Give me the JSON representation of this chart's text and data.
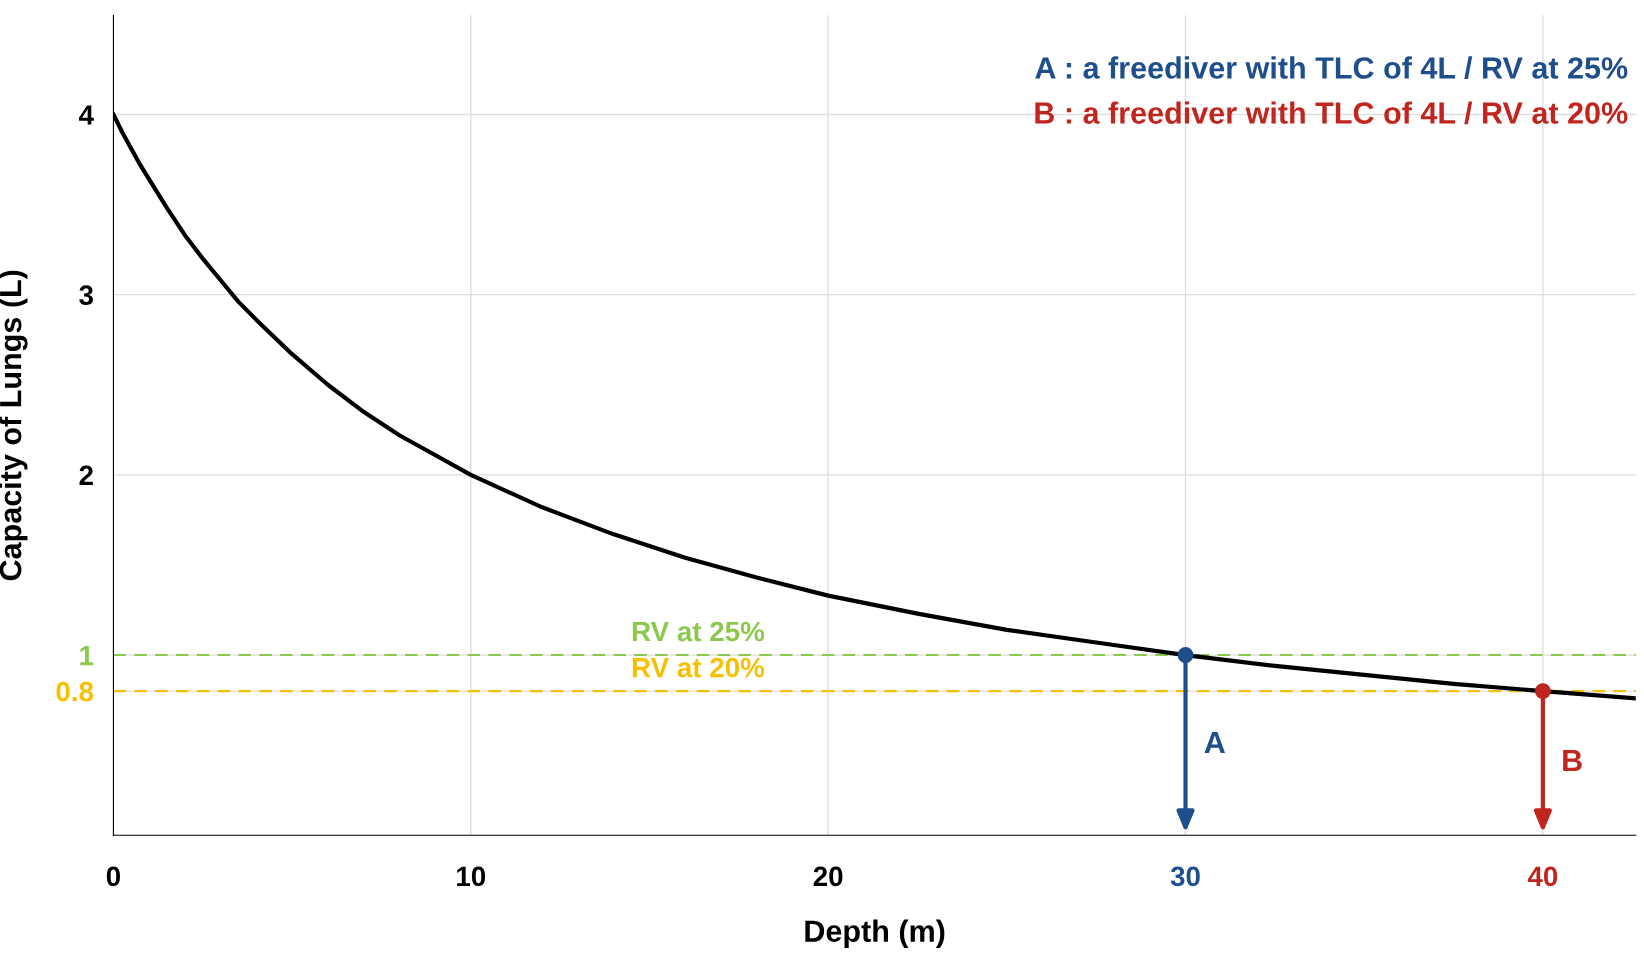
{
  "chart_data": {
    "type": "line",
    "xlabel": "Depth (m)",
    "ylabel": "Capacity of Lungs (L)",
    "xlim": [
      0,
      42.6
    ],
    "ylim": [
      0,
      4.55
    ],
    "xticks": [
      0,
      10,
      20,
      30,
      40
    ],
    "yticks": [
      0.8,
      1,
      2,
      3,
      4
    ],
    "grid": true,
    "legend": false,
    "series": [
      {
        "color": "#000000",
        "x": [
          0,
          0.25,
          0.5,
          0.75,
          1,
          1.5,
          2,
          2.5,
          3,
          3.5,
          4,
          5,
          6,
          7,
          8,
          9,
          10,
          12,
          14,
          16,
          18,
          20,
          22.5,
          25,
          27.5,
          30,
          32.5,
          35,
          37.5,
          40,
          42.6
        ],
        "values": [
          4,
          3.9,
          3.81,
          3.72,
          3.64,
          3.48,
          3.33,
          3.2,
          3.08,
          2.96,
          2.86,
          2.67,
          2.5,
          2.35,
          2.22,
          2.11,
          2,
          1.82,
          1.67,
          1.54,
          1.43,
          1.33,
          1.23,
          1.14,
          1.07,
          1,
          0.94,
          0.89,
          0.84,
          0.8,
          0.76
        ]
      },
      {
        "type": "scatter",
        "name": "A",
        "color": "#1f4e8c",
        "x": [
          30
        ],
        "values": [
          1
        ]
      },
      {
        "type": "scatter",
        "name": "B",
        "color": "#c0251e",
        "x": [
          40
        ],
        "values": [
          0.8
        ]
      }
    ],
    "ref_lines": [
      {
        "axis": "y",
        "value": 1,
        "label": "RV at 25%",
        "color": "#8cc84b",
        "line_style": "dashed"
      },
      {
        "axis": "y",
        "value": 0.8,
        "label": "RV at 20%",
        "color": "#f5c000",
        "line_style": "dashed"
      }
    ],
    "annotations": [
      "A : a freediver with TLC of 4L / RV at 25%",
      "B : a freediver with TLC of 4L / RV at 20%"
    ]
  }
}
